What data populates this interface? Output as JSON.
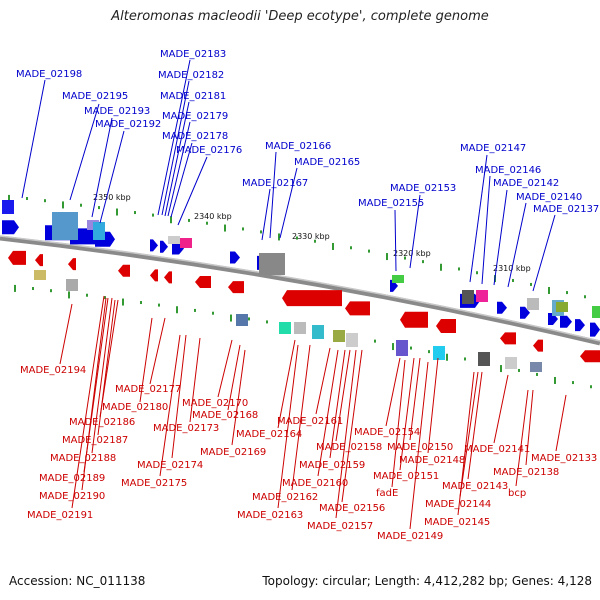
{
  "title": "Alteromonas macleodii 'Deep ecotype', complete genome",
  "footer": {
    "accession": "Accession: NC_011138",
    "topology": "Topology: circular; Length: 4,412,282 bp; Genes: 4,128"
  },
  "colors": {
    "forward": "#0000dd",
    "reverse": "#dd0000",
    "backbone": "#888888",
    "tick": "#339933"
  },
  "kbp_labels": [
    "2350 kbp",
    "2340 kbp",
    "2330 kbp",
    "2320 kbp",
    "2310 kbp"
  ],
  "top_labels": [
    "MADE_02198",
    "MADE_02195",
    "MADE_02193",
    "MADE_02192",
    "MADE_02183",
    "MADE_02182",
    "MADE_02181",
    "MADE_02179",
    "MADE_02178",
    "MADE_02176",
    "MADE_02166",
    "MADE_02165",
    "MADE_02167",
    "MADE_02153",
    "MADE_02155",
    "MADE_02147",
    "MADE_02146",
    "MADE_02142",
    "MADE_02140",
    "MADE_02137"
  ],
  "bottom_labels": [
    "MADE_02194",
    "MADE_02177",
    "MADE_02180",
    "MADE_02186",
    "MADE_02187",
    "MADE_02188",
    "MADE_02189",
    "MADE_02190",
    "MADE_02191",
    "MADE_02170",
    "MADE_02168",
    "MADE_02173",
    "MADE_02169",
    "MADE_02174",
    "MADE_02175",
    "MADE_02164",
    "MADE_02161",
    "MADE_02158",
    "MADE_02159",
    "MADE_02160",
    "MADE_02162",
    "MADE_02163",
    "MADE_02156",
    "MADE_02157",
    "MADE_02154",
    "MADE_02150",
    "MADE_02148",
    "MADE_02151",
    "fadE",
    "MADE_02149",
    "MADE_02141",
    "MADE_02143",
    "MADE_02144",
    "MADE_02145",
    "MADE_02138",
    "bcp",
    "MADE_02133"
  ]
}
